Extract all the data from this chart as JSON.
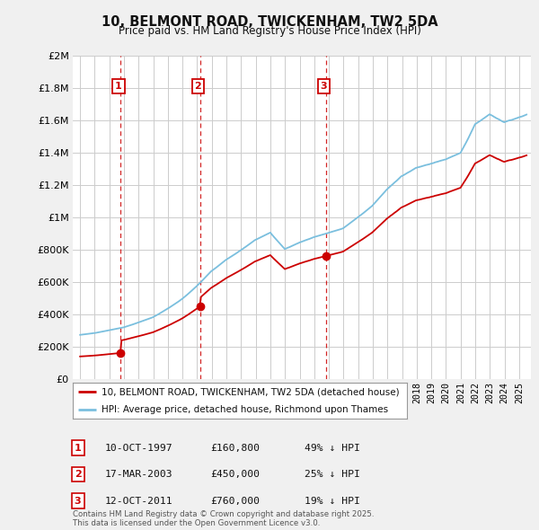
{
  "title": "10, BELMONT ROAD, TWICKENHAM, TW2 5DA",
  "subtitle": "Price paid vs. HM Land Registry's House Price Index (HPI)",
  "sale_dates_str": [
    "10-OCT-1997",
    "17-MAR-2003",
    "12-OCT-2011"
  ],
  "sale_dates_float": [
    1997.774,
    2003.204,
    2011.782
  ],
  "sale_prices": [
    160800,
    450000,
    760000
  ],
  "sale_labels": [
    "1",
    "2",
    "3"
  ],
  "hpi_color": "#7abfde",
  "price_color": "#cc0000",
  "background_color": "#f0f0f0",
  "plot_bg_color": "#ffffff",
  "grid_color": "#cccccc",
  "ylim": [
    0,
    2000000
  ],
  "ylabel_ticks": [
    0,
    200000,
    400000,
    600000,
    800000,
    1000000,
    1200000,
    1400000,
    1600000,
    1800000,
    2000000
  ],
  "xlim_start": 1994.5,
  "xlim_end": 2025.8,
  "footer_text": "Contains HM Land Registry data © Crown copyright and database right 2025.\nThis data is licensed under the Open Government Licence v3.0.",
  "legend_entry1": "10, BELMONT ROAD, TWICKENHAM, TW2 5DA (detached house)",
  "legend_entry2": "HPI: Average price, detached house, Richmond upon Thames",
  "ann_labels": [
    "1",
    "2",
    "3"
  ],
  "ann_dates": [
    "10-OCT-1997",
    "17-MAR-2003",
    "12-OCT-2011"
  ],
  "ann_prices": [
    "£160,800",
    "£450,000",
    "£760,000"
  ],
  "ann_pcts": [
    "49% ↓ HPI",
    "25% ↓ HPI",
    "19% ↓ HPI"
  ]
}
